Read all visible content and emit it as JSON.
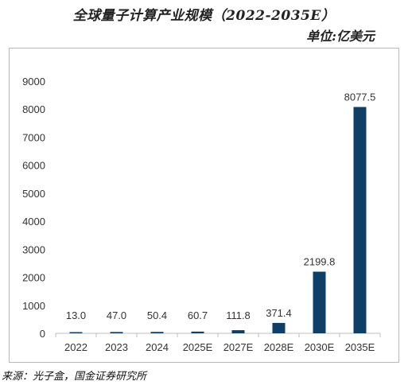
{
  "title": "全球量子计算产业规模（2022-2035E）",
  "unit_label": "单位:亿美元",
  "source": "来源：光子盒，国金证券研究所",
  "colors": {
    "bar": "#0e3f66",
    "axis": "#bfbfbf",
    "text": "#333333"
  },
  "chart_data": {
    "type": "bar",
    "title": "全球量子计算产业规模（2022-2035E）",
    "xlabel": "",
    "ylabel": "",
    "ylim": [
      0,
      9000
    ],
    "yticks": [
      "0",
      "1000",
      "2000",
      "3000",
      "4000",
      "5000",
      "6000",
      "7000",
      "8000",
      "9000"
    ],
    "grid": false,
    "categories": [
      "2022",
      "2023",
      "2024",
      "2025E",
      "2027E",
      "2028E",
      "2030E",
      "2035E"
    ],
    "values": [
      13.0,
      47.0,
      50.4,
      60.7,
      111.8,
      371.4,
      2199.8,
      8077.5
    ],
    "value_labels": [
      "13.0",
      "47.0",
      "50.4",
      "60.7",
      "111.8",
      "371.4",
      "2199.8",
      "8077.5"
    ]
  }
}
